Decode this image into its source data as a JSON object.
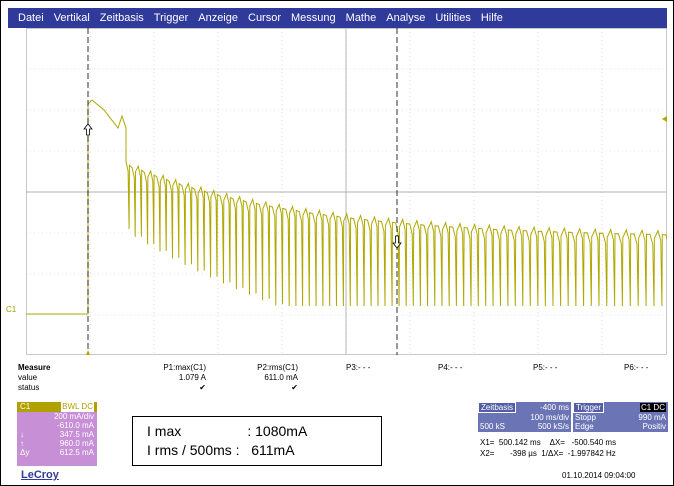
{
  "menu": [
    "Datei",
    "Vertikal",
    "Zeitbasis",
    "Trigger",
    "Anzeige",
    "Cursor",
    "Messung",
    "Mathe",
    "Analyse",
    "Utilities",
    "Hilfe"
  ],
  "channel_marker": "C1",
  "measure": {
    "label_col": [
      "Measure",
      "value",
      "status"
    ],
    "p1": {
      "name": "P1:max(C1)",
      "value": "1.079 A",
      "status": "✔"
    },
    "p2": {
      "name": "P2:rms(C1)",
      "value": "611.0 mA",
      "status": "✔"
    },
    "p3": "P3:- - -",
    "p4": "P4:- - -",
    "p5": "P5:- - -",
    "p6": "P6:- - -"
  },
  "c1_box": {
    "title": "C1",
    "badge": "BWL DC",
    "rows": [
      {
        "k": "",
        "v": "200 mA/div"
      },
      {
        "k": "",
        "v": "-610.0 mA"
      },
      {
        "k": "↓",
        "v": "347.5 mA"
      },
      {
        "k": "↑",
        "v": "960.0 mA"
      },
      {
        "k": "Δy",
        "v": "612.5 mA"
      }
    ]
  },
  "note": {
    "line1": "I max                 : 1080mA",
    "line2": "I rms / 500ms :   611mA"
  },
  "timebase": {
    "title": "Zeitbasis",
    "delay": "-400 ms",
    "div": "100 ms/div",
    "samples": "500 kS",
    "rate": "500 kS/s"
  },
  "trigger": {
    "title": "Trigger",
    "badge": "C1 DC",
    "mode": "Stopp",
    "level": "990 mA",
    "type": "Edge",
    "slope": "Positiv"
  },
  "cursor_readout": {
    "x1": "X1=  500.142 ms    ΔX=   -500.540 ms",
    "x2": "X2=       -398 µs  1/ΔX=  -1.997842 Hz"
  },
  "logo": "LeCroy",
  "datetime": "01.10.2014 09:04:00",
  "colors": {
    "trace": "#b0a800",
    "menu": "#2f3a9b",
    "c1": "#c78fd6",
    "timebase": "#6b75b5"
  }
}
